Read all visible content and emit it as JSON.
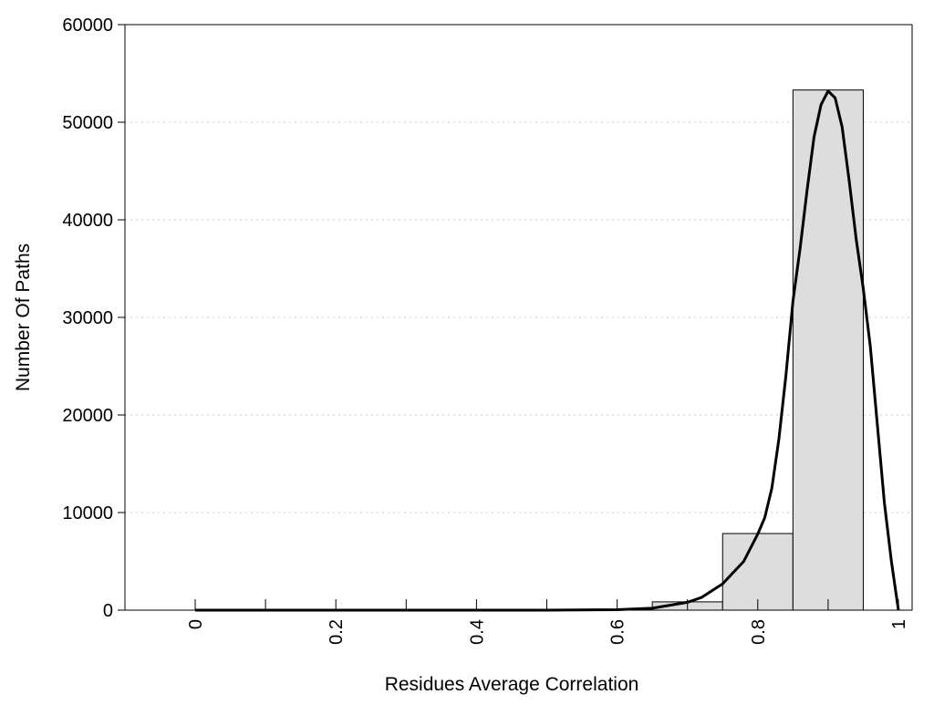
{
  "chart_data": {
    "type": "bar",
    "title": "",
    "xlabel": "Residues Average Correlation",
    "ylabel": "Number Of Paths",
    "xlim": [
      -0.1,
      1.02
    ],
    "ylim": [
      0,
      60000
    ],
    "grid": "horizontal dotted",
    "x_ticks": [
      0,
      0.1,
      0.2,
      0.3,
      0.4,
      0.5,
      0.6,
      0.7,
      0.8,
      0.9,
      1
    ],
    "x_tick_labels": [
      {
        "value": 0,
        "label": "0"
      },
      {
        "value": 0.2,
        "label": "0.2"
      },
      {
        "value": 0.4,
        "label": "0.4"
      },
      {
        "value": 0.6,
        "label": "0.6"
      },
      {
        "value": 0.8,
        "label": "0.8"
      },
      {
        "value": 1,
        "label": "1"
      }
    ],
    "y_ticks": [
      {
        "value": 0,
        "label": "0"
      },
      {
        "value": 10000,
        "label": "10000"
      },
      {
        "value": 20000,
        "label": "20000"
      },
      {
        "value": 30000,
        "label": "30000"
      },
      {
        "value": 40000,
        "label": "40000"
      },
      {
        "value": 50000,
        "label": "50000"
      },
      {
        "value": 60000,
        "label": "60000"
      }
    ],
    "bars": [
      {
        "x0": 0.65,
        "x1": 0.75,
        "value": 850
      },
      {
        "x0": 0.75,
        "x1": 0.85,
        "value": 7850
      },
      {
        "x0": 0.85,
        "x1": 0.95,
        "value": 53300
      }
    ],
    "bar_color": "#dddddd",
    "curve": {
      "type": "line",
      "color": "#000000",
      "x": [
        0,
        0.1,
        0.2,
        0.3,
        0.4,
        0.5,
        0.6,
        0.65,
        0.7,
        0.72,
        0.75,
        0.78,
        0.8,
        0.81,
        0.82,
        0.83,
        0.84,
        0.85,
        0.86,
        0.87,
        0.88,
        0.89,
        0.9,
        0.91,
        0.92,
        0.93,
        0.94,
        0.95,
        0.96,
        0.97,
        0.98,
        0.99,
        1.0
      ],
      "y": [
        0,
        0,
        0,
        0,
        0,
        0,
        50,
        200,
        800,
        1300,
        2700,
        5000,
        7800,
        9500,
        12500,
        17500,
        24000,
        31700,
        37000,
        43000,
        48500,
        51800,
        53200,
        52500,
        49500,
        44000,
        38000,
        33000,
        27000,
        19000,
        11000,
        5000,
        0
      ]
    }
  }
}
